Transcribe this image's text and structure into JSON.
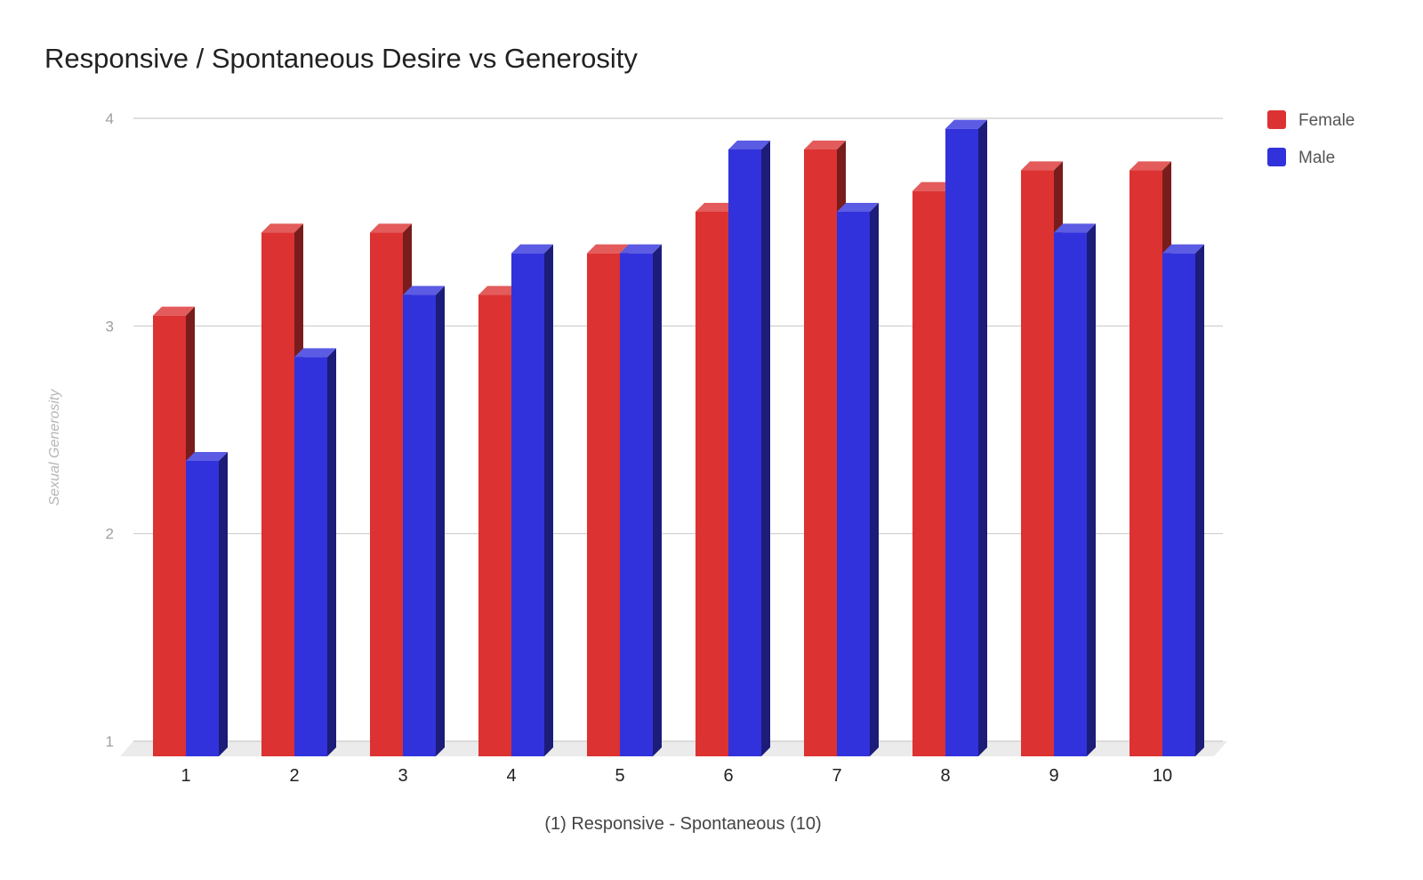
{
  "chart_data": {
    "type": "bar",
    "title": "Responsive / Spontaneous Desire vs Generosity",
    "xlabel": "(1) Responsive - Spontaneous (10)",
    "ylabel": "Sexual Generosity",
    "categories": [
      "1",
      "2",
      "3",
      "4",
      "5",
      "6",
      "7",
      "8",
      "9",
      "10"
    ],
    "series": [
      {
        "name": "Female",
        "color": "#dc3232",
        "values": [
          3.05,
          3.45,
          3.45,
          3.15,
          3.35,
          3.55,
          3.85,
          3.65,
          3.75,
          3.75
        ]
      },
      {
        "name": "Male",
        "color": "#3232dc",
        "values": [
          2.35,
          2.85,
          3.15,
          3.35,
          3.35,
          3.85,
          3.55,
          3.95,
          3.45,
          3.35
        ]
      }
    ],
    "yticks": [
      "1",
      "2",
      "3",
      "4"
    ],
    "ylim": [
      1,
      4
    ],
    "grid": true,
    "legend": "right",
    "style": "3d"
  }
}
